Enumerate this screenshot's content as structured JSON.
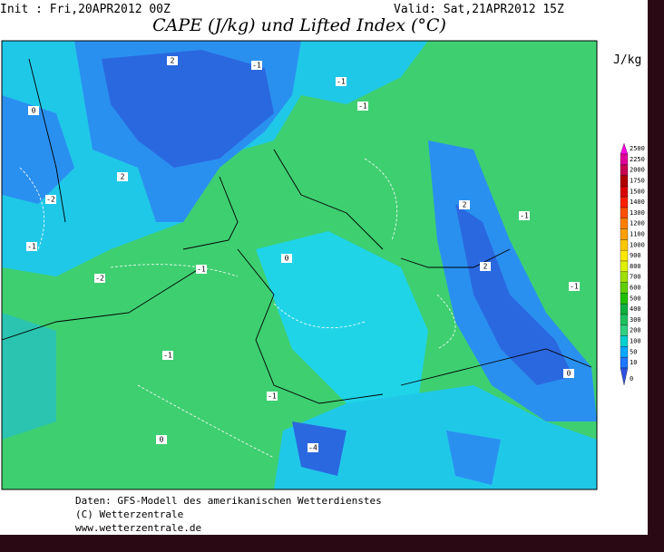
{
  "header": {
    "init": "Init : Fri,20APR2012 00Z",
    "valid": "Valid: Sat,21APR2012 15Z",
    "title": "CAPE (J/kg) und Lifted Index (°C)"
  },
  "contour_labels": [
    "2",
    "-1",
    "-1",
    "-1",
    "0",
    "-2",
    "-1",
    "-2",
    "-1",
    "0",
    "2",
    "2",
    "-1",
    "2",
    "-1",
    "-1",
    "0",
    "-4",
    "0",
    "-1"
  ],
  "legend": {
    "unit": "J/kg",
    "levels": [
      2500,
      2250,
      2000,
      1750,
      1500,
      1400,
      1300,
      1200,
      1100,
      1000,
      900,
      800,
      700,
      600,
      500,
      400,
      300,
      200,
      100,
      50,
      10,
      0
    ],
    "colors": [
      "#ff00e0",
      "#e0009a",
      "#c80050",
      "#b00000",
      "#d80000",
      "#ff2000",
      "#ff5000",
      "#ff8000",
      "#ffa000",
      "#ffc800",
      "#ffe800",
      "#e0f000",
      "#a0e000",
      "#60d000",
      "#20c000",
      "#10b040",
      "#20c060",
      "#30d080",
      "#00d0d0",
      "#00a8ff",
      "#2078ff",
      "#3050e0"
    ]
  },
  "footer": [
    "Daten: GFS-Modell des amerikanischen Wetterdienstes",
    "(C) Wetterzentrale",
    "www.wetterzentrale.de"
  ]
}
